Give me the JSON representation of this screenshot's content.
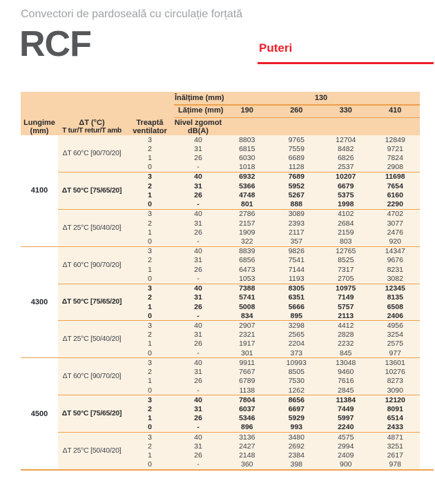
{
  "page": {
    "subtitle": "Convectori de pardoseală cu circulație forțată",
    "product": "RCF",
    "section_label": "Puteri"
  },
  "colors": {
    "accent_orange": "#EFA04B",
    "header_bg": "#F9D3A9",
    "body_bg": "#FCF2E3",
    "brand_red": "#ED1D28"
  },
  "table": {
    "header": {
      "height_label": "Înălțime (mm)",
      "height_value": "130",
      "width_label": "Lățime (mm)",
      "width_values": [
        "190",
        "260",
        "330",
        "410"
      ],
      "length_col": {
        "line1": "Lungime",
        "line2": "(mm)"
      },
      "dt_col": {
        "line1": "ΔT (°C)",
        "line2": "T tur/T retur/T amb"
      },
      "step_col": {
        "line1": "Treaptă",
        "line2": "ventilator"
      },
      "noise_col": {
        "line1": "Nivel zgomot",
        "line2": "dB(A)"
      }
    },
    "groups": [
      {
        "length": "4100",
        "subgroups": [
          {
            "dt": "ΔT 60°C [90/70/20]",
            "bold": false,
            "rows": [
              {
                "step": "3",
                "noise": "40",
                "values": [
                  "8803",
                  "9765",
                  "12704",
                  "12849"
                ]
              },
              {
                "step": "2",
                "noise": "31",
                "values": [
                  "6815",
                  "7559",
                  "8482",
                  "9721"
                ]
              },
              {
                "step": "1",
                "noise": "26",
                "values": [
                  "6030",
                  "6689",
                  "6826",
                  "7824"
                ]
              },
              {
                "step": "0",
                "noise": "-",
                "values": [
                  "1018",
                  "1128",
                  "2537",
                  "2908"
                ]
              }
            ]
          },
          {
            "dt": "ΔT 50°C [75/65/20]",
            "bold": true,
            "rows": [
              {
                "step": "3",
                "noise": "40",
                "values": [
                  "6932",
                  "7689",
                  "10207",
                  "11698"
                ]
              },
              {
                "step": "2",
                "noise": "31",
                "values": [
                  "5366",
                  "5952",
                  "6679",
                  "7654"
                ]
              },
              {
                "step": "1",
                "noise": "26",
                "values": [
                  "4748",
                  "5267",
                  "5375",
                  "6160"
                ]
              },
              {
                "step": "0",
                "noise": "-",
                "values": [
                  "801",
                  "888",
                  "1998",
                  "2290"
                ]
              }
            ]
          },
          {
            "dt": "ΔT 25°C [50/40/20]",
            "bold": false,
            "rows": [
              {
                "step": "3",
                "noise": "40",
                "values": [
                  "2786",
                  "3089",
                  "4102",
                  "4702"
                ]
              },
              {
                "step": "2",
                "noise": "31",
                "values": [
                  "2157",
                  "2393",
                  "2684",
                  "3077"
                ]
              },
              {
                "step": "1",
                "noise": "26",
                "values": [
                  "1909",
                  "2117",
                  "2159",
                  "2476"
                ]
              },
              {
                "step": "0",
                "noise": "-",
                "values": [
                  "322",
                  "357",
                  "803",
                  "920"
                ]
              }
            ]
          }
        ]
      },
      {
        "length": "4300",
        "subgroups": [
          {
            "dt": "ΔT 60°C [90/70/20]",
            "bold": false,
            "rows": [
              {
                "step": "3",
                "noise": "40",
                "values": [
                  "8839",
                  "9826",
                  "12765",
                  "14347"
                ]
              },
              {
                "step": "2",
                "noise": "31",
                "values": [
                  "6856",
                  "7541",
                  "8525",
                  "9676"
                ]
              },
              {
                "step": "1",
                "noise": "26",
                "values": [
                  "6473",
                  "7144",
                  "7317",
                  "8231"
                ]
              },
              {
                "step": "0",
                "noise": "-",
                "values": [
                  "1053",
                  "1193",
                  "2705",
                  "3082"
                ]
              }
            ]
          },
          {
            "dt": "ΔT 50°C [75/65/20]",
            "bold": true,
            "rows": [
              {
                "step": "3",
                "noise": "40",
                "values": [
                  "7388",
                  "8305",
                  "10975",
                  "12345"
                ]
              },
              {
                "step": "2",
                "noise": "31",
                "values": [
                  "5741",
                  "6351",
                  "7149",
                  "8135"
                ]
              },
              {
                "step": "1",
                "noise": "26",
                "values": [
                  "5008",
                  "5666",
                  "5757",
                  "6508"
                ]
              },
              {
                "step": "0",
                "noise": "-",
                "values": [
                  "834",
                  "895",
                  "2113",
                  "2406"
                ]
              }
            ]
          },
          {
            "dt": "ΔT 25°C [50/40/20]",
            "bold": false,
            "rows": [
              {
                "step": "3",
                "noise": "40",
                "values": [
                  "2907",
                  "3298",
                  "4412",
                  "4956"
                ]
              },
              {
                "step": "2",
                "noise": "31",
                "values": [
                  "2321",
                  "2565",
                  "2828",
                  "3254"
                ]
              },
              {
                "step": "1",
                "noise": "26",
                "values": [
                  "1917",
                  "2204",
                  "2232",
                  "2575"
                ]
              },
              {
                "step": "0",
                "noise": "-",
                "values": [
                  "301",
                  "373",
                  "845",
                  "977"
                ]
              }
            ]
          }
        ]
      },
      {
        "length": "4500",
        "subgroups": [
          {
            "dt": "ΔT 60°C [90/70/20]",
            "bold": false,
            "rows": [
              {
                "step": "3",
                "noise": "40",
                "values": [
                  "9911",
                  "10993",
                  "13048",
                  "13601"
                ]
              },
              {
                "step": "2",
                "noise": "31",
                "values": [
                  "7667",
                  "8505",
                  "9460",
                  "10276"
                ]
              },
              {
                "step": "1",
                "noise": "26",
                "values": [
                  "6789",
                  "7530",
                  "7616",
                  "8273"
                ]
              },
              {
                "step": "0",
                "noise": "-",
                "values": [
                  "1138",
                  "1262",
                  "2845",
                  "3090"
                ]
              }
            ]
          },
          {
            "dt": "ΔT 50°C [75/65/20]",
            "bold": true,
            "rows": [
              {
                "step": "3",
                "noise": "40",
                "values": [
                  "7804",
                  "8656",
                  "11384",
                  "12120"
                ]
              },
              {
                "step": "2",
                "noise": "31",
                "values": [
                  "6037",
                  "6697",
                  "7449",
                  "8091"
                ]
              },
              {
                "step": "1",
                "noise": "26",
                "values": [
                  "5346",
                  "5929",
                  "5997",
                  "6514"
                ]
              },
              {
                "step": "0",
                "noise": "-",
                "values": [
                  "896",
                  "993",
                  "2240",
                  "2433"
                ]
              }
            ]
          },
          {
            "dt": "ΔT 25°C [50/40/20]",
            "bold": false,
            "rows": [
              {
                "step": "3",
                "noise": "40",
                "values": [
                  "3136",
                  "3480",
                  "4575",
                  "4871"
                ]
              },
              {
                "step": "2",
                "noise": "31",
                "values": [
                  "2427",
                  "2692",
                  "2994",
                  "3251"
                ]
              },
              {
                "step": "1",
                "noise": "26",
                "values": [
                  "2148",
                  "2384",
                  "2409",
                  "2617"
                ]
              },
              {
                "step": "0",
                "noise": "-",
                "values": [
                  "360",
                  "398",
                  "900",
                  "978"
                ]
              }
            ]
          }
        ]
      }
    ]
  }
}
